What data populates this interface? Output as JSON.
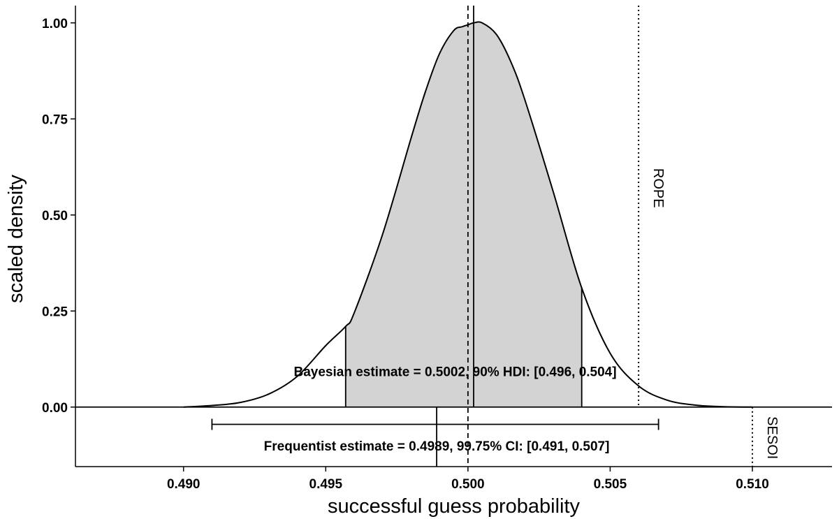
{
  "chart_data": {
    "type": "area",
    "xlabel": "successful guess probability",
    "ylabel": "scaled density",
    "xlim": [
      0.4862,
      0.5128
    ],
    "ylim": [
      -0.155,
      1.045
    ],
    "x_ticks": [
      0.49,
      0.495,
      0.5,
      0.505,
      0.51
    ],
    "x_tick_labels": [
      "0.490",
      "0.495",
      "0.500",
      "0.505",
      "0.510"
    ],
    "y_ticks": [
      0.0,
      0.25,
      0.5,
      0.75,
      1.0
    ],
    "y_tick_labels": [
      "0.00",
      "0.25",
      "0.50",
      "0.75",
      "1.00"
    ],
    "grid": false,
    "posterior_density": {
      "x": [
        0.49,
        0.491,
        0.492,
        0.493,
        0.494,
        0.495,
        0.4957,
        0.496,
        0.497,
        0.498,
        0.4985,
        0.499,
        0.4995,
        0.4998,
        0.5,
        0.5002,
        0.5005,
        0.501,
        0.5015,
        0.502,
        0.503,
        0.504,
        0.505,
        0.506,
        0.507,
        0.508,
        0.509,
        0.51
      ],
      "y": [
        0.0,
        0.004,
        0.012,
        0.034,
        0.08,
        0.16,
        0.21,
        0.245,
        0.45,
        0.7,
        0.82,
        0.92,
        0.98,
        0.99,
        0.995,
        1.0,
        1.0,
        0.97,
        0.9,
        0.8,
        0.56,
        0.31,
        0.14,
        0.055,
        0.018,
        0.005,
        0.001,
        0.0
      ]
    },
    "hdi": {
      "level": "90%",
      "lower": 0.4957,
      "upper": 0.504
    },
    "bayesian_estimate": 0.5002,
    "frequentist_estimate": 0.4989,
    "ci": {
      "level": "99.75%",
      "lower": 0.491,
      "upper": 0.5067
    },
    "null_value": 0.5,
    "rope_upper": 0.506,
    "sesoi": 0.51,
    "annotations": {
      "bayesian": "Bayesian estimate = 0.5002, 90% HDI: [0.496, 0.504]",
      "frequentist": "Frequentist estimate = 0.4989, 99.75% CI: [0.491, 0.507]",
      "rope": "ROPE",
      "sesoi": "SESOI"
    }
  }
}
